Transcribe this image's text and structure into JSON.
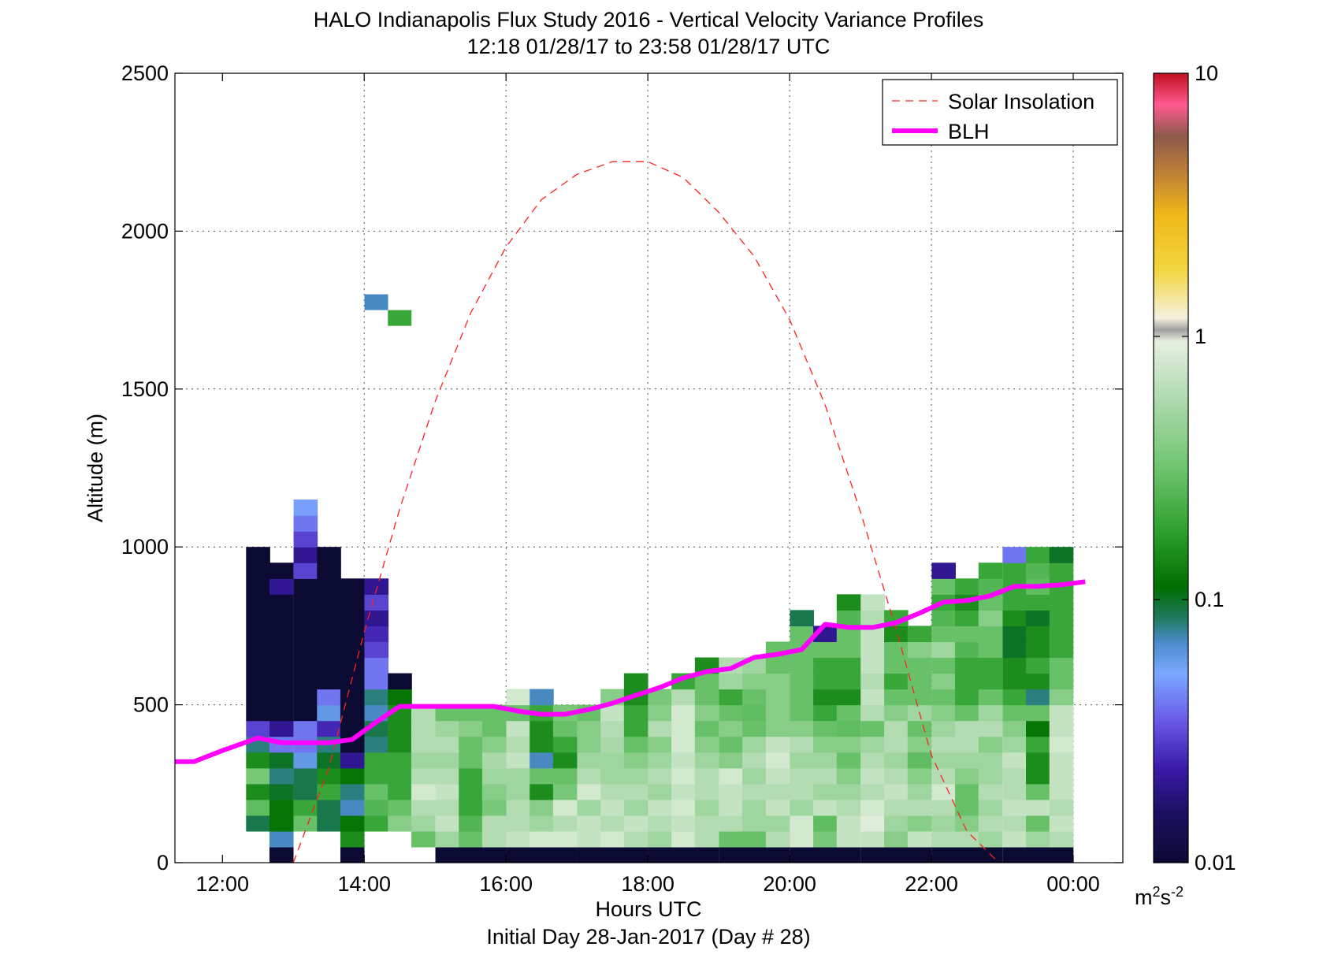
{
  "chart_data": {
    "type": "heatmap",
    "title": "HALO Indianapolis Flux Study 2016 - Vertical Velocity Variance Profiles",
    "subtitle": "12:18 01/28/17 to 23:58 01/28/17  UTC",
    "xlabel": "Hours UTC",
    "ylabel": "Altitude (m)",
    "footer": "Initial Day 28-Jan-2017 (Day # 28)",
    "xlim": [
      11.33,
      24.7
    ],
    "ylim": [
      0,
      2500
    ],
    "x_ticks": [
      12,
      14,
      16,
      18,
      20,
      22,
      24
    ],
    "x_tick_labels": [
      "12:00",
      "14:00",
      "16:00",
      "18:00",
      "20:00",
      "22:00",
      "00:00"
    ],
    "y_ticks": [
      0,
      500,
      1000,
      1500,
      2000,
      2500
    ],
    "y_tick_labels": [
      "0",
      "500",
      "1000",
      "1500",
      "2000",
      "2500"
    ],
    "grid": true,
    "legend": {
      "placement": "top-right",
      "entries": [
        {
          "label": "Solar Insolation",
          "color": "#ff2020",
          "style": "dashed"
        },
        {
          "label": "BLH",
          "color": "#ff00ff",
          "style": "solid-thick"
        }
      ]
    },
    "colorbar": {
      "scale": "log",
      "range": [
        0.01,
        10
      ],
      "ticks": [
        0.01,
        0.1,
        1,
        10
      ],
      "tick_labels": [
        "0.01",
        "0.1",
        "1",
        "10"
      ],
      "unit_main": "m",
      "unit_sup1": "2",
      "unit_mid": "s",
      "unit_sup2": "-2",
      "stops": [
        [
          0.0,
          "#0a0a33"
        ],
        [
          0.06,
          "#1a0f5e"
        ],
        [
          0.12,
          "#3a1aa8"
        ],
        [
          0.18,
          "#6a5ae8"
        ],
        [
          0.24,
          "#7aa8ff"
        ],
        [
          0.28,
          "#4a8ac8"
        ],
        [
          0.31,
          "#1e7a5e"
        ],
        [
          0.35,
          "#006e00"
        ],
        [
          0.42,
          "#2ea02e"
        ],
        [
          0.5,
          "#6ec46e"
        ],
        [
          0.6,
          "#b8deb8"
        ],
        [
          0.66,
          "#e6f0e0"
        ],
        [
          0.675,
          "#a0a0a0"
        ],
        [
          0.69,
          "#f5f1e0"
        ],
        [
          0.75,
          "#f2d640"
        ],
        [
          0.82,
          "#f0b818"
        ],
        [
          0.88,
          "#b87a3a"
        ],
        [
          0.92,
          "#8a5a4a"
        ],
        [
          0.96,
          "#ff5a90"
        ],
        [
          1.0,
          "#c01020"
        ]
      ]
    },
    "bin_height_m": 50,
    "bin_width_h": 0.333,
    "variance_bins": [
      {
        "t": 12.5,
        "bottom": 100,
        "values": [
          0.09,
          0.28,
          0.15,
          0.34,
          0.15,
          0.08,
          0.03,
          0.01,
          0.01,
          0.01,
          0.01,
          0.01,
          0.01,
          0.01,
          0.01,
          0.01,
          0.01,
          0.01
        ]
      },
      {
        "t": 12.83,
        "bottom": 0,
        "values": [
          0.01,
          0.07,
          0.12,
          0.12,
          0.1,
          0.08,
          0.1,
          0.04,
          0.02,
          0.01,
          0.01,
          0.01,
          0.01,
          0.01,
          0.01,
          0.01,
          0.01,
          0.02,
          0.01
        ]
      },
      {
        "t": 13.17,
        "bottom": 100,
        "values": [
          0.3,
          0.2,
          0.09,
          0.09,
          0.06,
          0.04,
          0.04,
          0.01,
          0.01,
          0.01,
          0.01,
          0.01,
          0.01,
          0.01,
          0.01,
          0.01,
          0.03,
          0.02,
          0.03,
          0.04,
          0.05
        ]
      },
      {
        "t": 13.5,
        "bottom": 100,
        "values": [
          0.09,
          0.09,
          0.2,
          0.15,
          0.1,
          0.08,
          0.025,
          0.06,
          0.04,
          0.01,
          0.01,
          0.01,
          0.01,
          0.01,
          0.01,
          0.01,
          0.01,
          0.01
        ]
      },
      {
        "t": 13.83,
        "bottom": 0,
        "values": [
          0.01,
          0.15,
          0.12,
          0.07,
          0.08,
          0.12,
          0.02,
          0.01,
          0.01,
          0.01,
          0.01,
          0.01,
          0.01,
          0.01,
          0.01,
          0.01,
          0.01,
          0.01
        ]
      },
      {
        "t": 14.17,
        "bottom": 100,
        "values": [
          0.2,
          0.25,
          0.3,
          0.2,
          0.2,
          0.08,
          0.09,
          0.07,
          0.08,
          0.04,
          0.04,
          0.03,
          0.025,
          0.02,
          0.03,
          0.02
        ]
      },
      {
        "t": 14.5,
        "bottom": 100,
        "values": [
          0.4,
          0.3,
          0.2,
          0.2,
          0.2,
          0.15,
          0.15,
          0.15,
          0.12,
          0.01
        ]
      },
      {
        "t": 14.83,
        "bottom": 50,
        "values": [
          0.3,
          0.5,
          0.6,
          0.8,
          0.6,
          0.5,
          0.6,
          0.6,
          0.6
        ]
      },
      {
        "t": 15.17,
        "bottom": 0,
        "values": [
          0.01,
          0.5,
          0.7,
          0.6,
          0.7,
          0.6,
          0.5,
          0.6,
          0.5,
          0.3
        ]
      },
      {
        "t": 15.5,
        "bottom": 0,
        "values": [
          0.01,
          0.3,
          0.25,
          0.2,
          0.2,
          0.2,
          0.3,
          0.3,
          0.4,
          0.3
        ]
      },
      {
        "t": 15.83,
        "bottom": 0,
        "values": [
          0.01,
          0.6,
          0.6,
          0.35,
          0.4,
          0.5,
          0.55,
          0.4,
          0.3,
          0.3
        ]
      },
      {
        "t": 16.17,
        "bottom": 0,
        "values": [
          0.01,
          0.7,
          0.6,
          0.6,
          0.5,
          0.5,
          0.7,
          0.6,
          0.7,
          0.3,
          0.8
        ]
      },
      {
        "t": 16.5,
        "bottom": 0,
        "values": [
          0.01,
          0.8,
          0.5,
          0.4,
          0.15,
          0.3,
          0.07,
          0.15,
          0.15,
          0.2,
          0.07
        ]
      },
      {
        "t": 16.83,
        "bottom": 0,
        "values": [
          0.01,
          0.8,
          0.6,
          0.8,
          0.35,
          0.3,
          0.15,
          0.2,
          0.3,
          0.35
        ]
      },
      {
        "t": 17.17,
        "bottom": 0,
        "values": [
          0.01,
          0.7,
          0.7,
          0.5,
          0.8,
          0.6,
          0.5,
          0.4,
          0.4,
          0.3
        ]
      },
      {
        "t": 17.5,
        "bottom": 0,
        "values": [
          0.01,
          0.8,
          0.6,
          0.7,
          0.6,
          0.5,
          0.5,
          0.55,
          0.6,
          0.7,
          0.4
        ]
      },
      {
        "t": 17.83,
        "bottom": 0,
        "values": [
          0.01,
          0.6,
          0.7,
          0.5,
          0.6,
          0.5,
          0.4,
          0.3,
          0.2,
          0.2,
          0.15,
          0.15
        ]
      },
      {
        "t": 18.17,
        "bottom": 0,
        "values": [
          0.01,
          0.5,
          0.6,
          0.7,
          0.5,
          0.6,
          0.5,
          0.4,
          0.6,
          0.4,
          0.35
        ]
      },
      {
        "t": 18.5,
        "bottom": 0,
        "values": [
          0.01,
          0.8,
          0.7,
          0.8,
          0.7,
          0.8,
          0.7,
          0.8,
          0.8,
          0.8,
          0.6,
          0.2
        ]
      },
      {
        "t": 18.83,
        "bottom": 0,
        "values": [
          0.01,
          0.6,
          0.6,
          0.5,
          0.6,
          0.6,
          0.5,
          0.4,
          0.3,
          0.4,
          0.3,
          0.3,
          0.15
        ]
      },
      {
        "t": 19.17,
        "bottom": 0,
        "values": [
          0.01,
          0.3,
          0.6,
          0.7,
          0.7,
          0.8,
          0.4,
          0.3,
          0.4,
          0.3,
          0.2,
          0.5,
          0.6
        ]
      },
      {
        "t": 19.5,
        "bottom": 0,
        "values": [
          0.01,
          0.3,
          0.5,
          0.5,
          0.6,
          0.5,
          0.6,
          0.5,
          0.3,
          0.28,
          0.3,
          0.4,
          0.5
        ]
      },
      {
        "t": 19.83,
        "bottom": 0,
        "values": [
          0.01,
          0.6,
          0.5,
          0.7,
          0.6,
          0.7,
          0.8,
          0.7,
          0.4,
          0.4,
          0.4,
          0.4,
          0.3,
          0.3
        ]
      },
      {
        "t": 20.17,
        "bottom": 0,
        "values": [
          0.01,
          0.8,
          0.8,
          0.5,
          0.6,
          0.6,
          0.5,
          0.6,
          0.4,
          0.3,
          0.3,
          0.3,
          0.3,
          0.3,
          0.3,
          0.09
        ]
      },
      {
        "t": 20.5,
        "bottom": 0,
        "values": [
          0.01,
          0.35,
          0.28,
          0.7,
          0.5,
          0.6,
          0.5,
          0.4,
          0.3,
          0.2,
          0.15,
          0.2,
          0.2,
          0.3,
          0.02
        ]
      },
      {
        "t": 20.83,
        "bottom": 0,
        "values": [
          0.01,
          0.7,
          0.7,
          0.6,
          0.5,
          0.4,
          0.3,
          0.4,
          0.28,
          0.3,
          0.15,
          0.2,
          0.2,
          0.3,
          0.3,
          0.25,
          0.15
        ]
      },
      {
        "t": 21.17,
        "bottom": 0,
        "values": [
          0.01,
          0.7,
          0.9,
          0.8,
          0.6,
          0.7,
          0.6,
          0.5,
          0.3,
          0.6,
          0.7,
          0.6,
          0.7,
          0.7,
          0.7,
          0.6,
          0.7
        ]
      },
      {
        "t": 21.5,
        "bottom": 0,
        "values": [
          0.01,
          0.4,
          0.5,
          0.6,
          0.7,
          0.6,
          0.5,
          0.6,
          0.6,
          0.4,
          0.3,
          0.2,
          0.3,
          0.3,
          0.15,
          0.2
        ]
      },
      {
        "t": 21.83,
        "bottom": 0,
        "values": [
          0.01,
          0.7,
          0.4,
          0.6,
          0.5,
          0.4,
          0.28,
          0.4,
          0.3,
          0.5,
          0.3,
          0.3,
          0.3,
          0.4,
          0.2
        ]
      },
      {
        "t": 22.17,
        "bottom": 0,
        "values": [
          0.01,
          0.6,
          0.5,
          0.6,
          0.8,
          0.6,
          0.5,
          0.6,
          0.5,
          0.4,
          0.3,
          0.4,
          0.3,
          0.5,
          0.3,
          0.25,
          0.2,
          0.3,
          0.02
        ]
      },
      {
        "t": 22.5,
        "bottom": 0,
        "values": [
          0.01,
          0.6,
          0.4,
          0.3,
          0.3,
          0.4,
          0.5,
          0.6,
          0.6,
          0.3,
          0.2,
          0.2,
          0.2,
          0.25,
          0.3,
          0.2,
          0.15,
          0.2
        ]
      },
      {
        "t": 22.83,
        "bottom": 0,
        "values": [
          0.01,
          0.5,
          0.6,
          0.5,
          0.6,
          0.5,
          0.5,
          0.4,
          0.6,
          0.5,
          0.3,
          0.2,
          0.2,
          0.3,
          0.3,
          0.4,
          0.3,
          0.25,
          0.2
        ]
      },
      {
        "t": 23.17,
        "bottom": 0,
        "values": [
          0.01,
          0.7,
          0.6,
          0.7,
          0.6,
          0.6,
          0.7,
          0.5,
          0.4,
          0.3,
          0.2,
          0.15,
          0.15,
          0.1,
          0.1,
          0.15,
          0.2,
          0.2,
          0.2,
          0.04
        ]
      },
      {
        "t": 23.5,
        "bottom": 0,
        "values": [
          0.01,
          0.5,
          0.3,
          0.7,
          0.3,
          0.15,
          0.15,
          0.2,
          0.12,
          0.3,
          0.08,
          0.15,
          0.2,
          0.15,
          0.15,
          0.1,
          0.2,
          0.28,
          0.25,
          0.2
        ]
      },
      {
        "t": 23.83,
        "bottom": 0,
        "values": [
          0.01,
          0.6,
          0.7,
          0.6,
          0.7,
          0.7,
          0.7,
          0.8,
          0.7,
          0.7,
          0.4,
          0.3,
          0.3,
          0.2,
          0.2,
          0.2,
          0.2,
          0.2,
          0.2,
          0.1
        ]
      }
    ],
    "blh_series": {
      "name": "BLH",
      "x": [
        11.33,
        11.6,
        12.0,
        12.5,
        12.83,
        13.17,
        13.5,
        13.83,
        14.17,
        14.5,
        14.83,
        15.17,
        15.5,
        15.83,
        16.17,
        16.5,
        16.83,
        17.17,
        17.5,
        17.83,
        18.17,
        18.5,
        18.83,
        19.17,
        19.5,
        19.83,
        20.17,
        20.5,
        20.83,
        21.17,
        21.5,
        21.83,
        22.17,
        22.5,
        22.83,
        23.17,
        23.5,
        23.83,
        24.17
      ],
      "y": [
        320,
        320,
        355,
        395,
        380,
        380,
        380,
        390,
        445,
        495,
        495,
        495,
        495,
        495,
        480,
        470,
        470,
        485,
        505,
        530,
        555,
        585,
        605,
        615,
        650,
        660,
        675,
        755,
        745,
        745,
        760,
        790,
        825,
        830,
        845,
        875,
        875,
        880,
        890
      ]
    },
    "solar_series": {
      "name": "Solar Insolation",
      "x": [
        13.0,
        13.5,
        14.0,
        14.5,
        15.0,
        15.5,
        16.0,
        16.5,
        17.0,
        17.5,
        18.0,
        18.5,
        19.0,
        19.5,
        20.0,
        20.5,
        21.0,
        21.5,
        22.0,
        22.5,
        22.95
      ],
      "y": [
        0,
        300,
        730,
        1120,
        1460,
        1740,
        1950,
        2100,
        2180,
        2220,
        2220,
        2170,
        2060,
        1920,
        1720,
        1450,
        1110,
        740,
        340,
        100,
        0
      ]
    }
  }
}
